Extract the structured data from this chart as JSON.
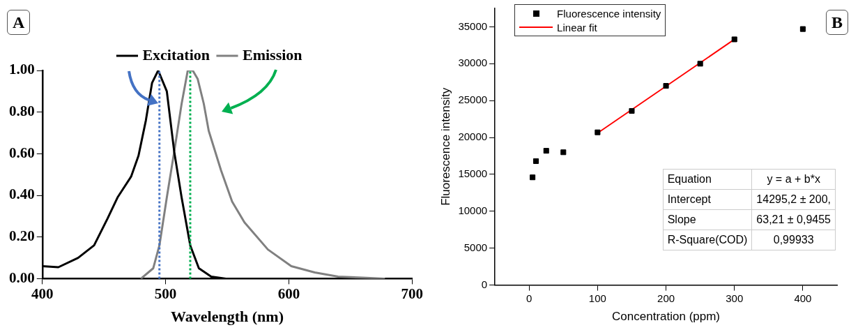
{
  "chart_data": [
    {
      "type": "line",
      "title": "A",
      "xlabel": "Wavelength (nm)",
      "xlim": [
        400,
        700
      ],
      "xticks": [
        400,
        500,
        600,
        700
      ],
      "ylim": [
        0,
        1
      ],
      "yticks": [
        {
          "value": 0,
          "label": "0.00"
        },
        {
          "value": 0.2,
          "label": "0.20"
        },
        {
          "value": 0.4,
          "label": "0.40"
        },
        {
          "value": 0.6,
          "label": "0.60"
        },
        {
          "value": 0.8,
          "label": "0.80"
        },
        {
          "value": 1,
          "label": "1.00"
        }
      ],
      "grid": false,
      "legend": "top",
      "marker": "none",
      "line_style": "solid",
      "series": [
        {
          "name": "Excitation",
          "color": "#000000",
          "x": [
            400,
            413,
            429,
            442,
            453,
            461,
            472,
            478,
            484,
            489,
            494,
            501,
            507,
            513,
            520,
            527,
            537,
            549,
            560
          ],
          "values": [
            0.06,
            0.055,
            0.1,
            0.16,
            0.29,
            0.39,
            0.49,
            0.59,
            0.76,
            0.94,
            1.0,
            0.9,
            0.61,
            0.39,
            0.16,
            0.05,
            0.01,
            0,
            0
          ]
        },
        {
          "name": "Emission",
          "color": "#808080",
          "x": [
            480,
            490,
            495,
            501,
            507,
            513,
            518,
            522,
            526,
            531,
            535,
            545,
            554,
            564,
            583,
            602,
            621,
            640,
            660,
            678
          ],
          "values": [
            0,
            0.05,
            0.16,
            0.39,
            0.61,
            0.84,
            1.0,
            1.0,
            0.96,
            0.84,
            0.71,
            0.52,
            0.37,
            0.27,
            0.14,
            0.06,
            0.03,
            0.01,
            0.005,
            0
          ]
        }
      ],
      "ref_lines": [
        {
          "axis": "x",
          "value": 495,
          "color": "#4472c4",
          "line_style": "dotted"
        },
        {
          "axis": "x",
          "value": 520,
          "color": "#00b050",
          "line_style": "dotted"
        }
      ]
    },
    {
      "type": "scatter",
      "title": "B",
      "xlabel": "Concentration (ppm)",
      "ylabel": "Fluorescence intensity",
      "xlim": [
        -50,
        450
      ],
      "xticks": [
        0,
        100,
        200,
        300,
        400
      ],
      "ylim": [
        0,
        37500
      ],
      "yticks": [
        0,
        5000,
        10000,
        15000,
        20000,
        25000,
        30000,
        35000
      ],
      "grid": false,
      "legend": "top left",
      "marker": "square",
      "series": [
        {
          "name": "Fluorescence intensity",
          "color": "#000000",
          "x": [
            5,
            10,
            25,
            50,
            100,
            150,
            200,
            250,
            300,
            400
          ],
          "values": [
            14600,
            16800,
            18200,
            18000,
            20700,
            23600,
            27000,
            30000,
            33300,
            34700
          ]
        },
        {
          "name": "Linear fit",
          "type": "line",
          "marker": "none",
          "color": "#ff0000",
          "x": [
            100,
            300
          ],
          "values": [
            20600,
            33300
          ]
        }
      ],
      "annotations": [
        "Equation",
        "y = a + b*x",
        "Intercept",
        "14295,2 ± 200,",
        "Slope",
        "63,21 ± 0,9455",
        "R-Square(COD)",
        "0,99933"
      ]
    }
  ]
}
